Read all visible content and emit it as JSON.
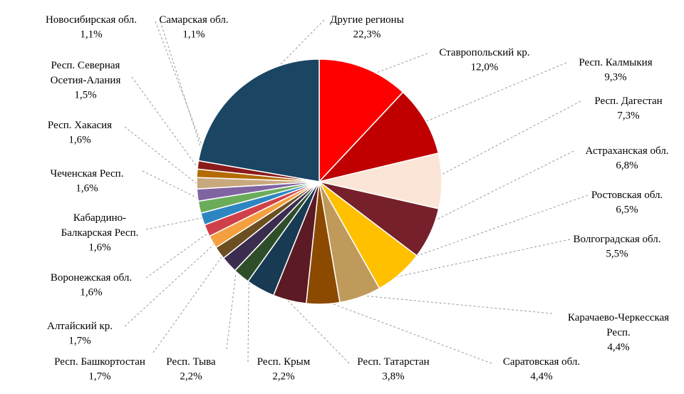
{
  "chart_data": {
    "type": "pie",
    "categories": [
      "Ставропольский кр.",
      "Респ. Калмыкия",
      "Респ. Дагестан",
      "Астраханская обл.",
      "Ростовская обл.",
      "Волгоградская обл.",
      "Карачаево-Черкесская\nРесп.",
      "Саратовская обл.",
      "Респ. Татарстан",
      "Респ. Крым",
      "Респ. Тыва",
      "Респ. Башкортостан",
      "Алтайский кр.",
      "Воронежская обл.",
      "Кабардино-\nБалкарская Респ.",
      "Чеченская Респ.",
      "Респ. Хакасия",
      "Респ. Северная\nОсетия-Алания",
      "Самарская обл.",
      "Новосибирская обл.",
      "Другие регионы"
    ],
    "values": [
      12.0,
      9.3,
      7.3,
      6.8,
      6.5,
      5.5,
      4.4,
      4.4,
      3.8,
      2.2,
      2.2,
      1.7,
      1.7,
      1.6,
      1.6,
      1.6,
      1.6,
      1.5,
      1.1,
      1.1,
      22.3
    ],
    "value_labels": [
      "12,0%",
      "9,3%",
      "7,3%",
      "6,8%",
      "6,5%",
      "5,5%",
      "4,4%",
      "4,4%",
      "3,8%",
      "2,2%",
      "2,2%",
      "1,7%",
      "1,7%",
      "1,6%",
      "1,6%",
      "1,6%",
      "1,6%",
      "1,5%",
      "1,1%",
      "1,1%",
      "22,3%"
    ],
    "colors": [
      "#ff0000",
      "#c00000",
      "#fbe5d6",
      "#75202a",
      "#ffc000",
      "#c09a5b",
      "#8b4a00",
      "#5c1a24",
      "#183a52",
      "#2e4e2a",
      "#3b2d4f",
      "#6b4f22",
      "#f4a040",
      "#d04048",
      "#2e86c1",
      "#6aac5a",
      "#8064a2",
      "#c8a97e",
      "#b36b00",
      "#8b1a1a",
      "#1a4563"
    ]
  }
}
